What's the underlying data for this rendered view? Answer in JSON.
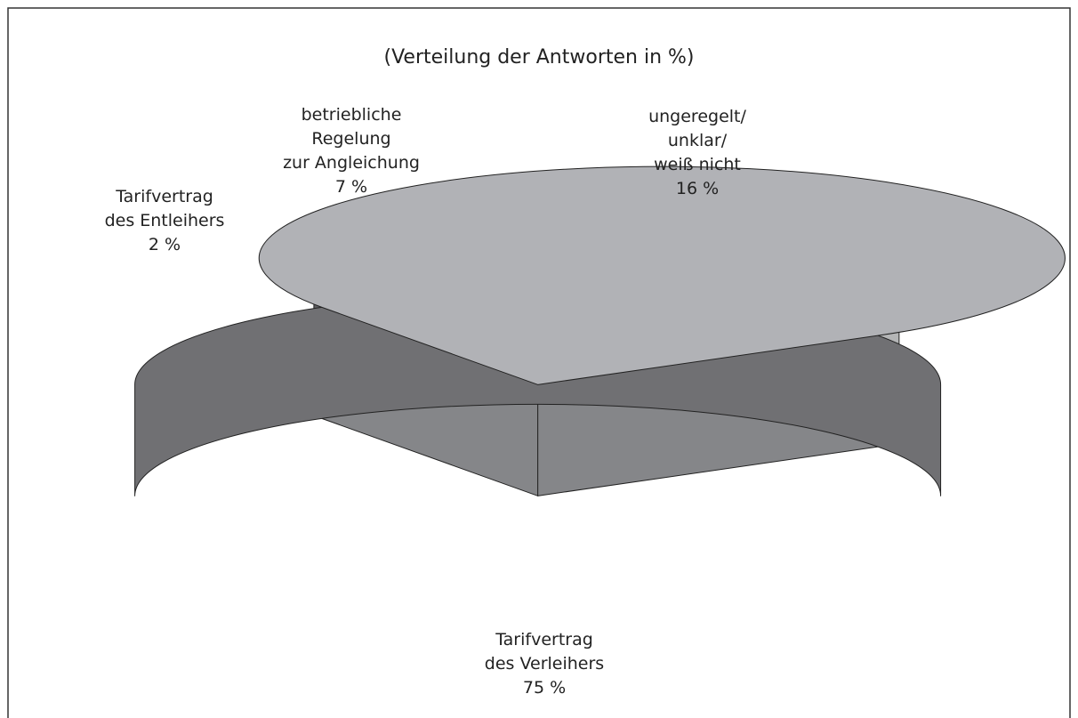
{
  "chart_data": {
    "type": "pie3d",
    "title": "(Verteilung der Antworten in %)",
    "categories": [
      "ungeregelt/\nunklar/\nweiß nicht",
      "Tarifvertrag\ndes Verleihers",
      "Tarifvertrag\ndes Entleihers",
      "betriebliche\nRegelung\nzur Angleichung"
    ],
    "values": [
      16,
      75,
      2,
      7
    ],
    "value_labels": [
      "16 %",
      "75 %",
      "2 %",
      "7 %"
    ],
    "colors": [
      "#f0f1f3",
      "#b1b2b6",
      "#7f7f82",
      "#fafafa"
    ]
  }
}
